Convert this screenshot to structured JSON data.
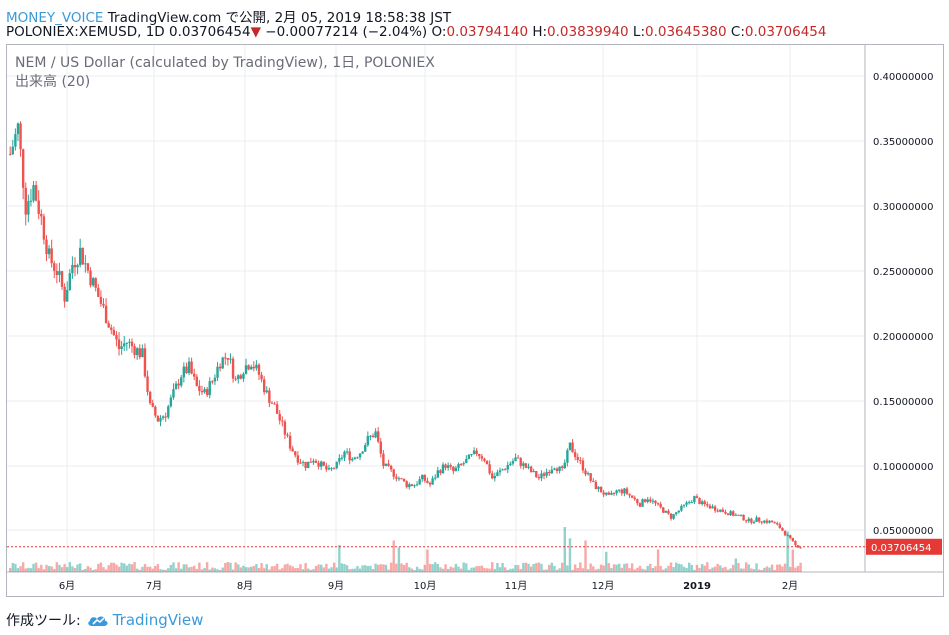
{
  "header": {
    "brand": "MONEY_VOICE",
    "published": "TradingView.com で公開, 2月 05, 2019 18:58:38 JST",
    "symbol": "POLONIEX:XEMUSD, 1D",
    "last": "0.03706454",
    "change": "−0.00077214 (−2.04%)",
    "o_label": "O:",
    "o_value": "0.03794140",
    "h_label": "H:",
    "h_value": "0.03839940",
    "l_label": "L:",
    "l_value": "0.03645380",
    "c_label": "C:",
    "c_value": "0.03706454"
  },
  "legend": {
    "title": "NEM / US Dollar (calculated by TradingView), 1日, POLONIEX",
    "volume": "出来高 (20)"
  },
  "footer": {
    "made_with": "作成ツール:",
    "tradingview": "TradingView"
  },
  "colors": {
    "up": "#26a69a",
    "down": "#ef5350",
    "grid": "#e8eef2",
    "axis": "#b2b5be",
    "last_price": "#e53935"
  },
  "chart_data": {
    "type": "candlestick",
    "price_axis": {
      "range": [
        0.0,
        0.41
      ],
      "ticks": [
        "0.40000000",
        "0.35000000",
        "0.30000000",
        "0.25000000",
        "0.20000000",
        "0.15000000",
        "0.10000000",
        "0.05000000"
      ]
    },
    "time_axis": {
      "ticks": [
        "6月",
        "7月",
        "8月",
        "9月",
        "10月",
        "11月",
        "12月",
        "2019",
        "2月"
      ]
    },
    "last_price_label": "0.03706454",
    "price_path_close": [
      [
        0,
        0.34
      ],
      [
        3,
        0.36
      ],
      [
        6,
        0.3
      ],
      [
        9,
        0.315
      ],
      [
        12,
        0.29
      ],
      [
        15,
        0.26
      ],
      [
        18,
        0.25
      ],
      [
        21,
        0.23
      ],
      [
        24,
        0.255
      ],
      [
        27,
        0.265
      ],
      [
        30,
        0.25
      ],
      [
        33,
        0.235
      ],
      [
        36,
        0.22
      ],
      [
        39,
        0.205
      ],
      [
        42,
        0.19
      ],
      [
        45,
        0.195
      ],
      [
        48,
        0.19
      ],
      [
        51,
        0.185
      ],
      [
        54,
        0.145
      ],
      [
        57,
        0.135
      ],
      [
        60,
        0.14
      ],
      [
        63,
        0.155
      ],
      [
        66,
        0.17
      ],
      [
        69,
        0.175
      ],
      [
        72,
        0.16
      ],
      [
        75,
        0.155
      ],
      [
        78,
        0.165
      ],
      [
        81,
        0.18
      ],
      [
        84,
        0.185
      ],
      [
        87,
        0.165
      ],
      [
        90,
        0.175
      ],
      [
        93,
        0.18
      ],
      [
        96,
        0.17
      ],
      [
        99,
        0.155
      ],
      [
        102,
        0.145
      ],
      [
        105,
        0.13
      ],
      [
        108,
        0.115
      ],
      [
        111,
        0.105
      ],
      [
        114,
        0.1
      ],
      [
        117,
        0.105
      ],
      [
        120,
        0.1
      ],
      [
        123,
        0.095
      ],
      [
        126,
        0.1
      ],
      [
        129,
        0.11
      ],
      [
        132,
        0.105
      ],
      [
        135,
        0.11
      ],
      [
        138,
        0.12
      ],
      [
        141,
        0.125
      ],
      [
        144,
        0.1
      ],
      [
        147,
        0.095
      ],
      [
        150,
        0.09
      ],
      [
        153,
        0.085
      ],
      [
        156,
        0.085
      ],
      [
        159,
        0.09
      ],
      [
        162,
        0.085
      ],
      [
        165,
        0.095
      ],
      [
        168,
        0.1
      ],
      [
        171,
        0.095
      ],
      [
        174,
        0.1
      ],
      [
        177,
        0.105
      ],
      [
        180,
        0.11
      ],
      [
        183,
        0.105
      ],
      [
        186,
        0.09
      ],
      [
        189,
        0.095
      ],
      [
        192,
        0.1
      ],
      [
        195,
        0.105
      ],
      [
        198,
        0.1
      ],
      [
        201,
        0.095
      ],
      [
        204,
        0.09
      ],
      [
        207,
        0.095
      ],
      [
        210,
        0.1
      ],
      [
        213,
        0.095
      ],
      [
        216,
        0.115
      ],
      [
        219,
        0.105
      ],
      [
        222,
        0.095
      ],
      [
        225,
        0.085
      ],
      [
        228,
        0.08
      ],
      [
        231,
        0.075
      ],
      [
        234,
        0.08
      ],
      [
        237,
        0.08
      ],
      [
        240,
        0.075
      ],
      [
        243,
        0.07
      ],
      [
        246,
        0.075
      ],
      [
        249,
        0.07
      ],
      [
        252,
        0.065
      ],
      [
        255,
        0.06
      ],
      [
        258,
        0.065
      ],
      [
        261,
        0.07
      ],
      [
        264,
        0.075
      ],
      [
        267,
        0.07
      ],
      [
        270,
        0.068
      ],
      [
        273,
        0.066
      ],
      [
        276,
        0.064
      ],
      [
        279,
        0.062
      ],
      [
        282,
        0.06
      ],
      [
        285,
        0.057
      ],
      [
        288,
        0.058
      ],
      [
        291,
        0.057
      ],
      [
        294,
        0.056
      ],
      [
        297,
        0.052
      ],
      [
        300,
        0.045
      ],
      [
        303,
        0.038
      ],
      [
        305,
        0.037
      ]
    ],
    "volume_scale_note": "relative",
    "volume_spikes": [
      [
        127,
        0.6
      ],
      [
        148,
        0.7
      ],
      [
        150,
        0.55
      ],
      [
        161,
        0.5
      ],
      [
        214,
        1.0
      ],
      [
        216,
        0.75
      ],
      [
        222,
        0.7
      ],
      [
        230,
        0.45
      ],
      [
        250,
        0.5
      ],
      [
        280,
        0.3
      ],
      [
        300,
        0.9
      ],
      [
        302,
        0.5
      ]
    ]
  }
}
